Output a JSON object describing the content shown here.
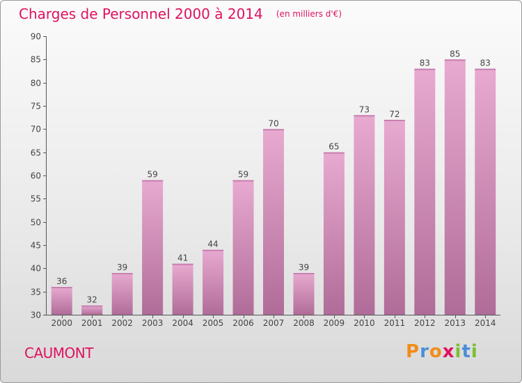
{
  "title": "Charges de Personnel 2000 à 2014",
  "unit": "(en milliers d'€)",
  "commune": "CAUMONT",
  "brand": {
    "letters": [
      "P",
      "r",
      "o",
      "x",
      "i",
      "t",
      "i"
    ],
    "colors": [
      "#f28c1a",
      "#4a8fd6",
      "#f28c1a",
      "#e0115f",
      "#7cbf32",
      "#4a8fd6",
      "#7cbf32"
    ]
  },
  "colors": {
    "title": "#e0115f",
    "bar_top": "#e8aad0",
    "bar_bottom": "#b06c98",
    "axis": "#555555"
  },
  "chart_data": {
    "type": "bar",
    "title": "Charges de Personnel 2000 à 2014",
    "subtitle": "(en milliers d'€)",
    "categories": [
      "2000",
      "2001",
      "2002",
      "2003",
      "2004",
      "2005",
      "2006",
      "2007",
      "2008",
      "2009",
      "2010",
      "2011",
      "2012",
      "2013",
      "2014"
    ],
    "values": [
      36,
      32,
      39,
      59,
      41,
      44,
      59,
      70,
      39,
      65,
      73,
      72,
      83,
      85,
      83
    ],
    "ylim": [
      30,
      90
    ],
    "yticks": [
      30,
      35,
      40,
      45,
      50,
      55,
      60,
      65,
      70,
      75,
      80,
      85,
      90
    ],
    "grid": false,
    "data_labels": true
  }
}
